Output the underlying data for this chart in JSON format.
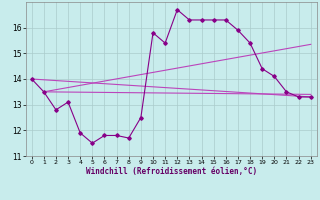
{
  "xlabel": "Windchill (Refroidissement éolien,°C)",
  "ylabel": "",
  "bg_color": "#c8ecec",
  "grid_color": "#aacccc",
  "line_color": "#880088",
  "line_color2": "#bb44bb",
  "xlim": [
    -0.5,
    23.5
  ],
  "ylim": [
    11,
    17
  ],
  "yticks": [
    11,
    12,
    13,
    14,
    15,
    16
  ],
  "xticks": [
    0,
    1,
    2,
    3,
    4,
    5,
    6,
    7,
    8,
    9,
    10,
    11,
    12,
    13,
    14,
    15,
    16,
    17,
    18,
    19,
    20,
    21,
    22,
    23
  ],
  "series1_x": [
    0,
    1,
    2,
    3,
    4,
    5,
    6,
    7,
    8,
    9,
    10,
    11,
    12,
    13,
    14,
    15,
    16,
    17,
    18,
    19,
    20,
    21,
    22,
    23
  ],
  "series1_y": [
    14.0,
    13.5,
    12.8,
    13.1,
    11.9,
    11.5,
    11.8,
    11.8,
    11.7,
    12.5,
    15.8,
    15.4,
    16.7,
    16.3,
    16.3,
    16.3,
    16.3,
    15.9,
    15.4,
    14.4,
    14.1,
    13.5,
    13.3,
    13.3
  ],
  "series2_x": [
    0,
    23
  ],
  "series2_y": [
    14.0,
    13.3
  ],
  "series3_x": [
    1,
    23
  ],
  "series3_y": [
    13.5,
    13.4
  ],
  "series4_x": [
    1,
    23
  ],
  "series4_y": [
    13.5,
    15.35
  ],
  "figsize": [
    3.2,
    2.0
  ],
  "dpi": 100
}
